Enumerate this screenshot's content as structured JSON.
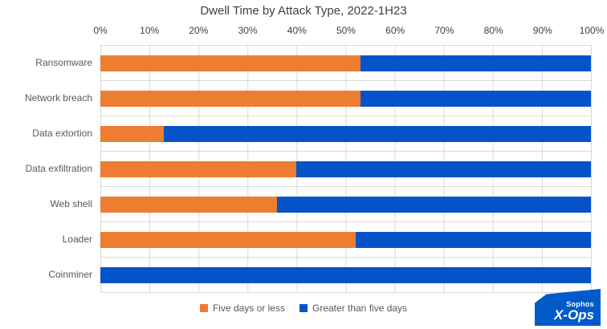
{
  "chart_data": {
    "type": "bar",
    "orientation": "horizontal",
    "stacked": true,
    "percent_stacked": true,
    "title": "Dwell Time by Attack Type, 2022-1H23",
    "categories": [
      "Ransomware",
      "Network breach",
      "Data extortion",
      "Data exfiltration",
      "Web shell",
      "Loader",
      "Coinminer"
    ],
    "series": [
      {
        "name": "Five days or less",
        "color": "#ED7D31",
        "values": [
          53,
          53,
          13,
          40,
          36,
          52,
          0
        ]
      },
      {
        "name": "Greater than five days",
        "color": "#0553C8",
        "values": [
          47,
          47,
          87,
          60,
          64,
          48,
          100
        ]
      }
    ],
    "x_ticks": [
      "0%",
      "10%",
      "20%",
      "30%",
      "40%",
      "50%",
      "60%",
      "70%",
      "80%",
      "90%",
      "100%"
    ],
    "xlim": [
      0,
      100
    ],
    "grid": "vertical",
    "legend_position": "bottom"
  },
  "colors": {
    "gridline": "#d9d9d9",
    "title_text": "#404040",
    "axis_text": "#404040",
    "label_text": "#595959",
    "logo_background": "#005bc8"
  },
  "logo": {
    "line1": "Sophos",
    "line2": "X-Ops"
  }
}
